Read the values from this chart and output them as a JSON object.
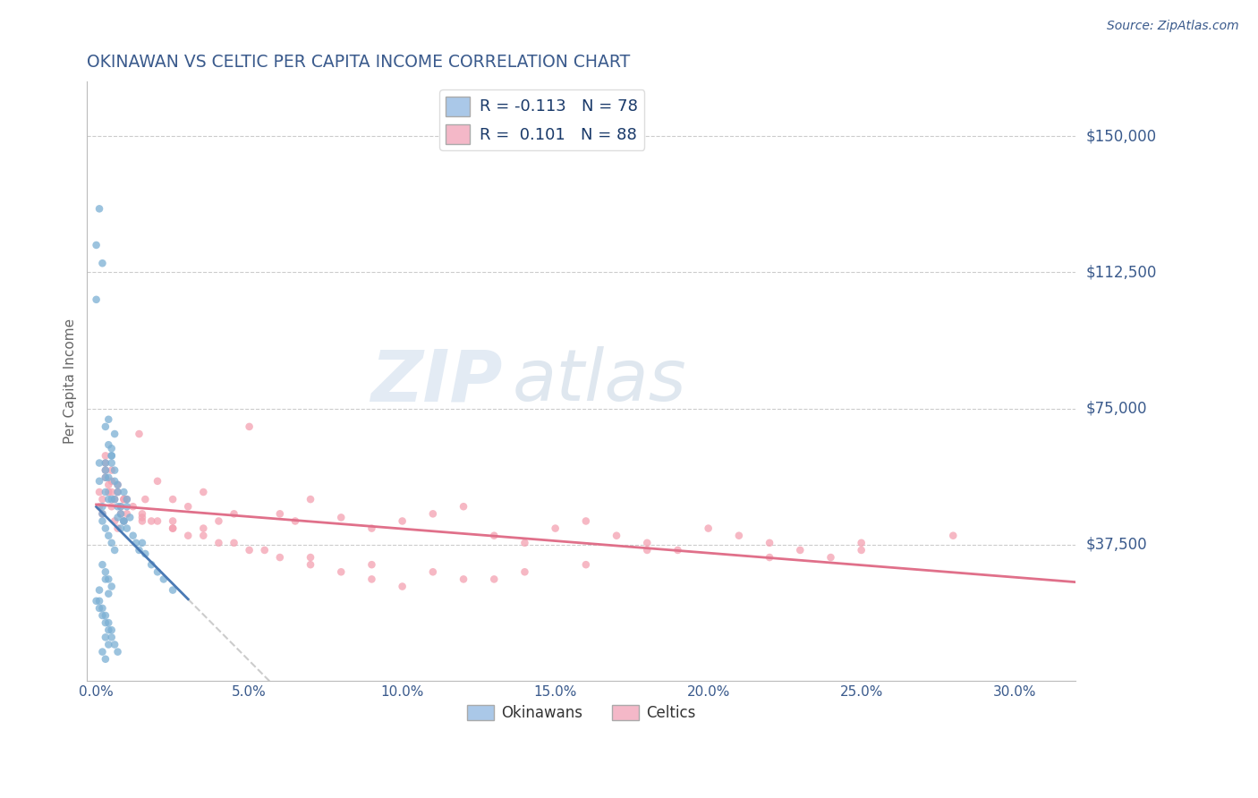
{
  "title": "OKINAWAN VS CELTIC PER CAPITA INCOME CORRELATION CHART",
  "source": "Source: ZipAtlas.com",
  "ylabel": "Per Capita Income",
  "xlabel_ticks": [
    "0.0%",
    "5.0%",
    "10.0%",
    "15.0%",
    "20.0%",
    "25.0%",
    "30.0%"
  ],
  "xlabel_vals": [
    0.0,
    0.05,
    0.1,
    0.15,
    0.2,
    0.25,
    0.3
  ],
  "ytick_labels": [
    "$37,500",
    "$75,000",
    "$112,500",
    "$150,000"
  ],
  "ytick_vals": [
    37500,
    75000,
    112500,
    150000
  ],
  "ylim": [
    0,
    165000
  ],
  "xlim": [
    -0.003,
    0.32
  ],
  "title_color": "#3a5a8c",
  "source_color": "#3a5a8c",
  "ytick_color": "#3a5a8c",
  "xtick_color": "#3a5a8c",
  "ylabel_color": "#666666",
  "grid_color": "#cccccc",
  "okinawan_color": "#7bafd4",
  "celtic_color": "#f4a0b0",
  "okinawan_line_color": "#4a7ab5",
  "celtic_line_color": "#e0708a",
  "dashed_line_color": "#cccccc",
  "legend_box_okinawan": "#aac8e8",
  "legend_box_celtic": "#f4b8c8",
  "R_okinawan": -0.113,
  "N_okinawan": 78,
  "R_celtic": 0.101,
  "N_celtic": 88,
  "watermark_zip": "ZIP",
  "watermark_atlas": "atlas",
  "okinawan_x": [
    0.0,
    0.0,
    0.001,
    0.001,
    0.002,
    0.002,
    0.003,
    0.003,
    0.003,
    0.004,
    0.004,
    0.005,
    0.005,
    0.005,
    0.006,
    0.006,
    0.007,
    0.007,
    0.008,
    0.008,
    0.009,
    0.009,
    0.01,
    0.01,
    0.011,
    0.012,
    0.013,
    0.014,
    0.015,
    0.016,
    0.018,
    0.02,
    0.022,
    0.025,
    0.001,
    0.002,
    0.003,
    0.004,
    0.005,
    0.006,
    0.007,
    0.008,
    0.009,
    0.01,
    0.003,
    0.004,
    0.005,
    0.006,
    0.007,
    0.002,
    0.003,
    0.004,
    0.005,
    0.006,
    0.003,
    0.004,
    0.005,
    0.002,
    0.003,
    0.004,
    0.001,
    0.002,
    0.003,
    0.004,
    0.005,
    0.003,
    0.004,
    0.002,
    0.003,
    0.001,
    0.0,
    0.001,
    0.002,
    0.003,
    0.004,
    0.005,
    0.006,
    0.007
  ],
  "okinawan_y": [
    120000,
    105000,
    60000,
    55000,
    48000,
    46000,
    58000,
    56000,
    52000,
    65000,
    50000,
    62000,
    60000,
    50000,
    68000,
    55000,
    52000,
    45000,
    48000,
    42000,
    52000,
    44000,
    50000,
    42000,
    45000,
    40000,
    38000,
    36000,
    38000,
    35000,
    32000,
    30000,
    28000,
    25000,
    130000,
    115000,
    70000,
    72000,
    64000,
    58000,
    54000,
    46000,
    44000,
    48000,
    60000,
    56000,
    62000,
    50000,
    48000,
    44000,
    42000,
    40000,
    38000,
    36000,
    30000,
    28000,
    26000,
    32000,
    28000,
    24000,
    22000,
    20000,
    18000,
    16000,
    14000,
    12000,
    10000,
    8000,
    6000,
    25000,
    22000,
    20000,
    18000,
    16000,
    14000,
    12000,
    10000,
    8000
  ],
  "celtic_x": [
    0.001,
    0.002,
    0.003,
    0.004,
    0.005,
    0.006,
    0.007,
    0.008,
    0.009,
    0.01,
    0.012,
    0.014,
    0.016,
    0.018,
    0.02,
    0.025,
    0.03,
    0.035,
    0.04,
    0.045,
    0.05,
    0.06,
    0.065,
    0.07,
    0.08,
    0.09,
    0.1,
    0.11,
    0.12,
    0.13,
    0.14,
    0.15,
    0.16,
    0.17,
    0.18,
    0.19,
    0.2,
    0.21,
    0.22,
    0.23,
    0.24,
    0.25,
    0.001,
    0.002,
    0.003,
    0.004,
    0.005,
    0.006,
    0.008,
    0.01,
    0.015,
    0.02,
    0.025,
    0.03,
    0.04,
    0.05,
    0.06,
    0.07,
    0.08,
    0.09,
    0.1,
    0.12,
    0.14,
    0.16,
    0.18,
    0.003,
    0.005,
    0.007,
    0.009,
    0.015,
    0.025,
    0.035,
    0.045,
    0.055,
    0.07,
    0.09,
    0.11,
    0.13,
    0.003,
    0.005,
    0.007,
    0.009,
    0.015,
    0.025,
    0.035,
    0.28,
    0.25,
    0.22
  ],
  "celtic_y": [
    48000,
    46000,
    58000,
    52000,
    48000,
    44000,
    42000,
    46000,
    44000,
    50000,
    48000,
    68000,
    50000,
    44000,
    55000,
    50000,
    48000,
    52000,
    44000,
    46000,
    70000,
    46000,
    44000,
    50000,
    45000,
    42000,
    44000,
    46000,
    48000,
    40000,
    38000,
    42000,
    44000,
    40000,
    38000,
    36000,
    42000,
    40000,
    38000,
    36000,
    34000,
    38000,
    52000,
    50000,
    56000,
    54000,
    52000,
    50000,
    48000,
    46000,
    45000,
    44000,
    42000,
    40000,
    38000,
    36000,
    34000,
    32000,
    30000,
    28000,
    26000,
    28000,
    30000,
    32000,
    36000,
    60000,
    55000,
    52000,
    50000,
    44000,
    42000,
    40000,
    38000,
    36000,
    34000,
    32000,
    30000,
    28000,
    62000,
    58000,
    54000,
    50000,
    46000,
    44000,
    42000,
    40000,
    36000,
    34000
  ]
}
